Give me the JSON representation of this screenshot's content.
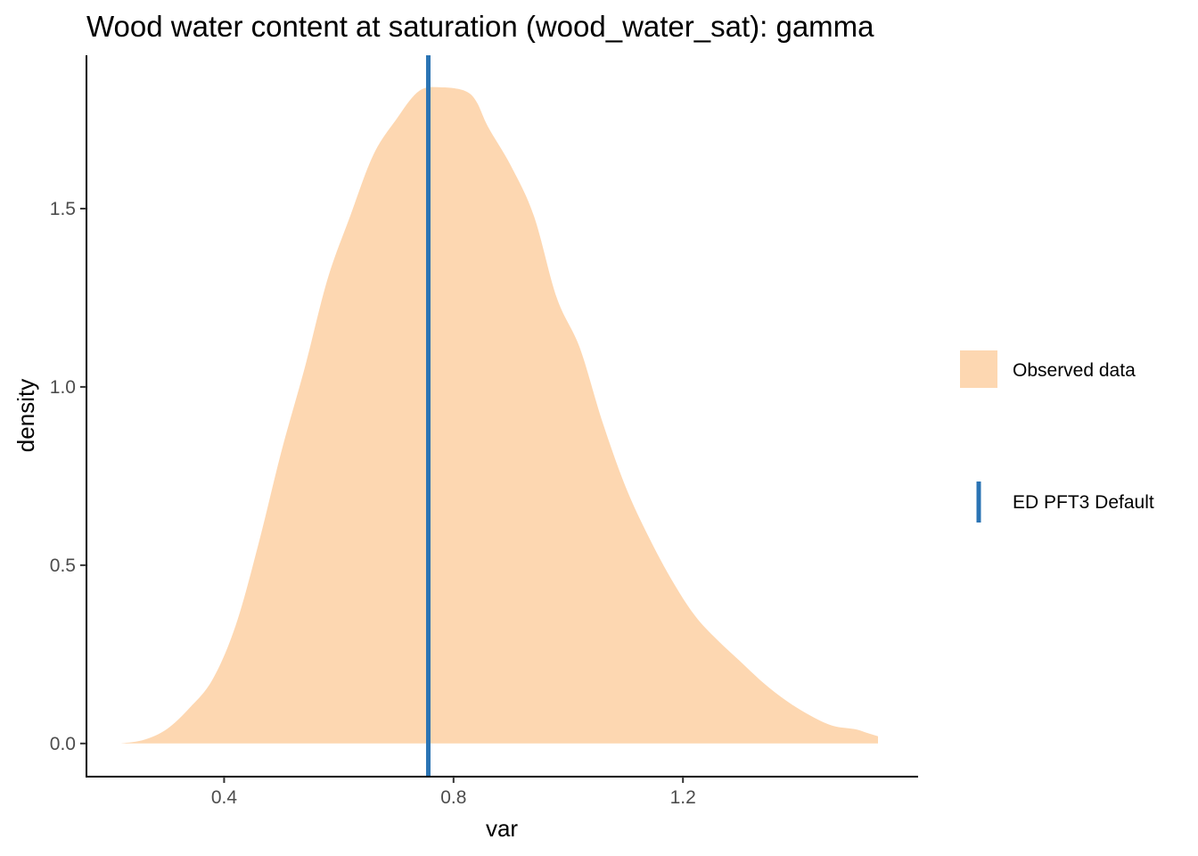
{
  "chart_data": {
    "type": "area",
    "title": "Wood water content at saturation (wood_water_sat): gamma",
    "xlabel": "var",
    "ylabel": "density",
    "xlim": [
      0.16,
      1.61
    ],
    "ylim": [
      -0.093,
      1.93
    ],
    "x_ticks": [
      {
        "value": 0.4,
        "label": "0.4"
      },
      {
        "value": 0.8,
        "label": "0.8"
      },
      {
        "value": 1.2,
        "label": "1.2"
      }
    ],
    "y_ticks": [
      {
        "value": 0.0,
        "label": "0.0"
      },
      {
        "value": 0.5,
        "label": "0.5"
      },
      {
        "value": 1.0,
        "label": "1.0"
      },
      {
        "value": 1.5,
        "label": "1.5"
      }
    ],
    "grid": false,
    "legend_position": "right",
    "series": [
      {
        "name": "Observed data",
        "kind": "density-area",
        "color": "#fdd7b1",
        "x": [
          0.22,
          0.26,
          0.3,
          0.34,
          0.38,
          0.42,
          0.46,
          0.5,
          0.54,
          0.58,
          0.62,
          0.66,
          0.7,
          0.74,
          0.78,
          0.82,
          0.84,
          0.86,
          0.9,
          0.94,
          0.98,
          1.02,
          1.06,
          1.1,
          1.14,
          1.18,
          1.22,
          1.26,
          1.3,
          1.34,
          1.38,
          1.42,
          1.46,
          1.5,
          1.52,
          1.54
        ],
        "y": [
          0.0,
          0.01,
          0.04,
          0.1,
          0.18,
          0.33,
          0.56,
          0.82,
          1.05,
          1.3,
          1.48,
          1.65,
          1.75,
          1.83,
          1.84,
          1.83,
          1.8,
          1.73,
          1.62,
          1.48,
          1.25,
          1.11,
          0.9,
          0.72,
          0.58,
          0.46,
          0.36,
          0.29,
          0.23,
          0.17,
          0.12,
          0.08,
          0.05,
          0.04,
          0.03,
          0.02
        ]
      },
      {
        "name": "ED PFT3 Default",
        "kind": "vertical-line",
        "color": "#2b74b4",
        "x": 0.756
      }
    ]
  }
}
